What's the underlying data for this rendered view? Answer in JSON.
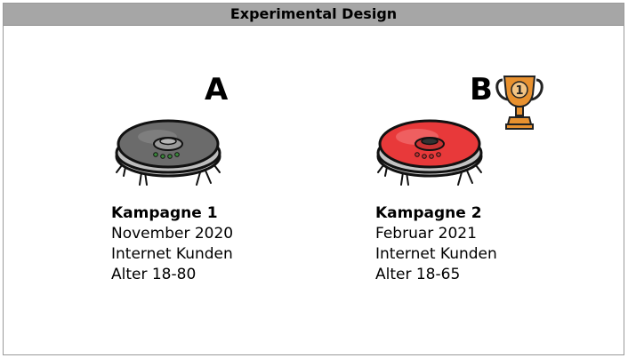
{
  "title": "Experimental Design",
  "variants": [
    {
      "letter": "A",
      "campaign": "Kampagne 1",
      "date": "November 2020",
      "audience": "Internet Kunden",
      "age": "Alter 18-80",
      "robot_icon": "robot-vacuum-gray-icon",
      "color": "#6b6b6b"
    },
    {
      "letter": "B",
      "campaign": "Kampagne 2",
      "date": "Februar 2021",
      "audience": "Internet Kunden",
      "age": "Alter 18-65",
      "robot_icon": "robot-vacuum-red-icon",
      "color": "#e8393a",
      "winner_icon": "trophy-icon",
      "winner_rank": "1"
    }
  ]
}
